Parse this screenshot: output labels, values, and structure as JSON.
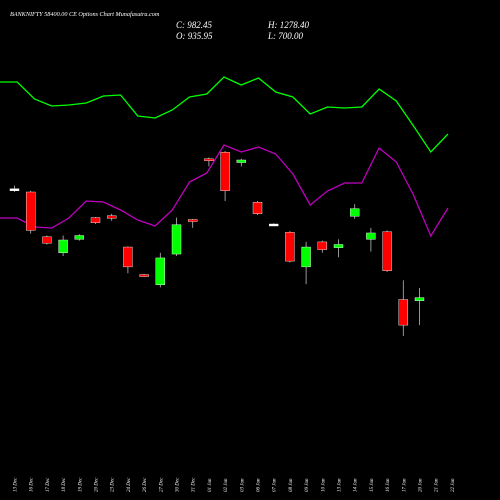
{
  "chart_data": {
    "type": "candlestick",
    "title": "BANKNIFTY 58400.00 CE Options Chart Munafasutra.com",
    "stats": {
      "close": "C: 982.45",
      "high": "H: 1278.40",
      "open": "O: 935.95",
      "low": "L: 700.00"
    },
    "x_labels": [
      "13 Dec",
      "16 Dec",
      "17 Dec",
      "18 Dec",
      "19 Dec",
      "20 Dec",
      "23 Dec",
      "24 Dec",
      "26 Dec",
      "27 Dec",
      "30 Dec",
      "31 Dec",
      "01 Jan",
      "02 Jan",
      "03 Jan",
      "06 Jan",
      "07 Jan",
      "08 Jan",
      "09 Jan",
      "10 Jan",
      "13 Jan",
      "14 Jan",
      "15 Jan",
      "16 Jan",
      "17 Jan",
      "20 Jan",
      "21 Jan",
      "22 Jan"
    ],
    "candles": [
      {
        "date": "13 Dec",
        "open": 1105,
        "high": 1110,
        "low": 1100,
        "close": 1105,
        "color": "#ffffff"
      },
      {
        "date": "16 Dec",
        "open": 1100,
        "high": 1102,
        "low": 1035,
        "close": 1040,
        "color": "#ff0000"
      },
      {
        "date": "17 Dec",
        "open": 1030,
        "high": 1032,
        "low": 1018,
        "close": 1020,
        "color": "#ff0000"
      },
      {
        "date": "18 Dec",
        "open": 1005,
        "high": 1032,
        "low": 1000,
        "close": 1025,
        "color": "#00ff00"
      },
      {
        "date": "19 Dec",
        "open": 1026,
        "high": 1034,
        "low": 1024,
        "close": 1032,
        "color": "#00ff00"
      },
      {
        "date": "20 Dec",
        "open": 1060,
        "high": 1061,
        "low": 1050,
        "close": 1052,
        "color": "#ff0000"
      },
      {
        "date": "23 Dec",
        "open": 1063,
        "high": 1066,
        "low": 1055,
        "close": 1059,
        "color": "#ff0000"
      },
      {
        "date": "24 Dec",
        "open": 1014,
        "high": 1015,
        "low": 973,
        "close": 983,
        "color": "#ff0000"
      },
      {
        "date": "26 Dec",
        "open": 971,
        "high": 972,
        "low": 967,
        "close": 969,
        "color": "#ff0000"
      },
      {
        "date": "27 Dec",
        "open": 955,
        "high": 1005,
        "low": 951,
        "close": 997,
        "color": "#00ff00"
      },
      {
        "date": "30 Dec",
        "open": 1003,
        "high": 1060,
        "low": 1000,
        "close": 1049,
        "color": "#00ff00"
      },
      {
        "date": "31 Dec",
        "open": 1057,
        "high": 1058,
        "low": 1044,
        "close": 1055,
        "color": "#ff0000"
      },
      {
        "date": "01 Jan",
        "open": 1152,
        "high": 1154,
        "low": 1140,
        "close": 1150,
        "color": "#ff0000"
      },
      {
        "date": "02 Jan",
        "open": 1162,
        "high": 1164,
        "low": 1086,
        "close": 1102,
        "color": "#ff0000"
      },
      {
        "date": "03 Jan",
        "open": 1146,
        "high": 1152,
        "low": 1140,
        "close": 1150,
        "color": "#00ff00"
      },
      {
        "date": "06 Jan",
        "open": 1084,
        "high": 1086,
        "low": 1064,
        "close": 1066,
        "color": "#ff0000"
      },
      {
        "date": "07 Jan",
        "open": 1050,
        "high": 1051,
        "low": 1049,
        "close": 1050,
        "color": "#ffffff"
      },
      {
        "date": "08 Jan",
        "open": 1037,
        "high": 1039,
        "low": 990,
        "close": 992,
        "color": "#ff0000"
      },
      {
        "date": "09 Jan",
        "open": 983,
        "high": 1022,
        "low": 956,
        "close": 1014,
        "color": "#00ff00"
      },
      {
        "date": "10 Jan",
        "open": 1022,
        "high": 1024,
        "low": 1005,
        "close": 1010,
        "color": "#ff0000"
      },
      {
        "date": "13 Jan",
        "open": 1013,
        "high": 1026,
        "low": 998,
        "close": 1018,
        "color": "#00ff00"
      },
      {
        "date": "14 Jan",
        "open": 1062,
        "high": 1081,
        "low": 1058,
        "close": 1074,
        "color": "#00ff00"
      },
      {
        "date": "15 Jan",
        "open": 1026,
        "high": 1044,
        "low": 1007,
        "close": 1036,
        "color": "#00ff00"
      },
      {
        "date": "16 Jan",
        "open": 1038,
        "high": 1040,
        "low": 975,
        "close": 977,
        "color": "#ff0000"
      },
      {
        "date": "17 Jan",
        "open": 932,
        "high": 962,
        "low": 875,
        "close": 892,
        "color": "#ff0000"
      },
      {
        "date": "20 Jan",
        "open": 930,
        "high": 950,
        "low": 892,
        "close": 935,
        "color": "#00ff00"
      }
    ],
    "indicator_upper": {
      "color": "#00ff00",
      "values": [
        82,
        82,
        99,
        106,
        105,
        103,
        96,
        95,
        116,
        118,
        110,
        97,
        94,
        77,
        85,
        78,
        92,
        97,
        114,
        107,
        108,
        107,
        89,
        101,
        126,
        152,
        134
      ]
    },
    "indicator_lower": {
      "color": "#c000c0",
      "values": [
        218,
        218,
        227,
        228,
        218,
        201,
        202,
        210,
        220,
        226,
        210,
        182,
        173,
        145,
        152,
        147,
        154,
        174,
        205,
        191,
        183,
        183,
        148,
        162,
        195,
        236,
        208
      ]
    }
  }
}
